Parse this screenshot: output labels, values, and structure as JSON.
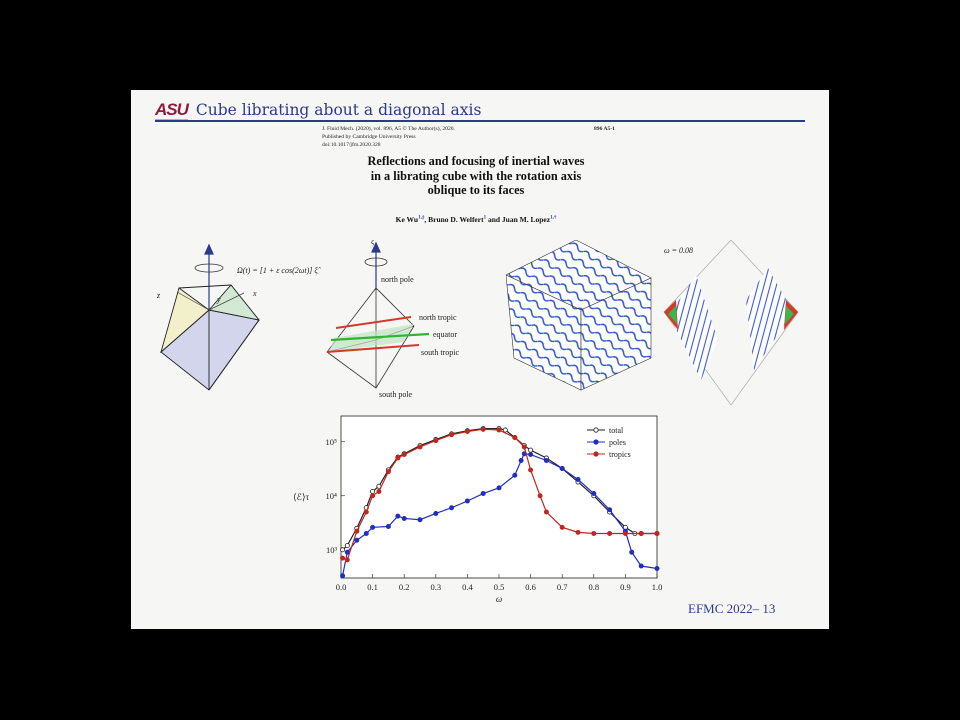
{
  "header": {
    "logo": "ASU",
    "title": "Cube librating about a diagonal axis"
  },
  "journal": {
    "line1": "J. Fluid Mech. (2020), vol. 896, A5   © The Author(s), 2020.",
    "line2": "Published by Cambridge University Press",
    "line3": "doi:10.1017/jfm.2020.328",
    "page_ref": "896 A5-1"
  },
  "paper": {
    "title_l1": "Reflections and focusing of inertial waves",
    "title_l2": "in a librating cube with the rotation axis",
    "title_l3": "oblique to its faces",
    "authors": "Ke Wu",
    "authors_rest1": ", Bruno D. Welfert",
    "authors_rest2": " and Juan M. Lopez",
    "sup1": "1,‡",
    "sup2": "1",
    "sup3": "1,†"
  },
  "figure1": {
    "equation": "Ω(t) = [1 + ε cos(2ωt)] ξ̂",
    "axis_x": "x",
    "axis_y": "y",
    "axis_z": "z",
    "axis_xi": "ξ",
    "north_pole": "north pole",
    "north_tropic": "north tropic",
    "equator": "equator",
    "south_tropic": "south tropic",
    "south_pole": "south pole",
    "omega_label": "ω = 0.08"
  },
  "footer": {
    "text": "EFMC 2022– 13"
  },
  "colors": {
    "brand": "#8c1d40",
    "accent": "#2b3a8c",
    "total": "#222222",
    "poles": "#1f2fbf",
    "tropics": "#c0281d"
  },
  "chart_data": {
    "type": "line",
    "xlabel": "ω",
    "ylabel": "⟨ℰ⟩τ",
    "xlim": [
      0,
      1
    ],
    "ylim": [
      300,
      300000
    ],
    "yscale": "log",
    "xticks": [
      "0.0",
      "0.1",
      "0.2",
      "0.3",
      "0.4",
      "0.5",
      "0.6",
      "0.7",
      "0.8",
      "0.9",
      "1.0"
    ],
    "yticks": [
      {
        "value": 1000,
        "label": "10³"
      },
      {
        "value": 10000,
        "label": "10⁴"
      },
      {
        "value": 100000,
        "label": "10⁵"
      }
    ],
    "legend_position": "top-right",
    "series": [
      {
        "name": "total",
        "marker": "open-circle",
        "color": "#222222",
        "x": [
          0.005,
          0.02,
          0.05,
          0.08,
          0.1,
          0.12,
          0.15,
          0.18,
          0.2,
          0.25,
          0.3,
          0.35,
          0.4,
          0.45,
          0.5,
          0.52,
          0.55,
          0.58,
          0.6,
          0.65,
          0.7,
          0.75,
          0.8,
          0.85,
          0.9,
          0.93,
          0.95,
          1.0
        ],
        "y": [
          1000,
          1200,
          2500,
          6000,
          12000,
          15000,
          30000,
          52000,
          60000,
          85000,
          110000,
          140000,
          160000,
          175000,
          175000,
          165000,
          120000,
          85000,
          70000,
          50000,
          32000,
          18000,
          10000,
          5000,
          2600,
          2000,
          2000,
          2000
        ]
      },
      {
        "name": "poles",
        "marker": "filled-circle",
        "color": "#1f2fbf",
        "x": [
          0.005,
          0.02,
          0.05,
          0.08,
          0.1,
          0.15,
          0.18,
          0.2,
          0.25,
          0.3,
          0.35,
          0.4,
          0.45,
          0.5,
          0.55,
          0.57,
          0.58,
          0.6,
          0.65,
          0.7,
          0.75,
          0.8,
          0.85,
          0.9,
          0.92,
          0.95,
          1.0
        ],
        "y": [
          330,
          900,
          1500,
          2000,
          2600,
          2700,
          4200,
          3800,
          3600,
          4700,
          6000,
          8000,
          11000,
          14000,
          24000,
          45000,
          60000,
          58000,
          45000,
          32000,
          20000,
          11000,
          5500,
          2200,
          900,
          500,
          450
        ]
      },
      {
        "name": "tropics",
        "marker": "filled-circle",
        "color": "#c0281d",
        "x": [
          0.005,
          0.02,
          0.05,
          0.08,
          0.1,
          0.12,
          0.15,
          0.18,
          0.2,
          0.25,
          0.3,
          0.35,
          0.4,
          0.45,
          0.5,
          0.55,
          0.58,
          0.6,
          0.63,
          0.65,
          0.7,
          0.75,
          0.8,
          0.85,
          0.9,
          0.95,
          1.0
        ],
        "y": [
          700,
          650,
          2200,
          5000,
          10000,
          12000,
          28000,
          50000,
          58000,
          80000,
          105000,
          135000,
          155000,
          170000,
          165000,
          120000,
          80000,
          30000,
          10000,
          5000,
          2600,
          2100,
          2000,
          2000,
          2000,
          2000,
          2000
        ]
      }
    ]
  }
}
